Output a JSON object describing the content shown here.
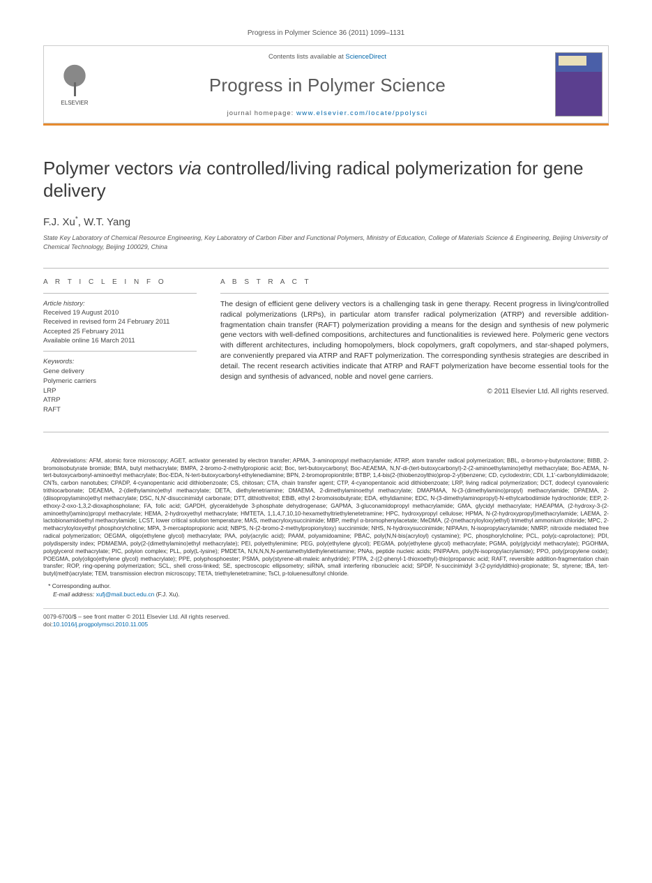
{
  "citation": "Progress in Polymer Science 36 (2011) 1099–1131",
  "masthead": {
    "contents_prefix": "Contents lists available at ",
    "contents_link": "ScienceDirect",
    "journal_name": "Progress in Polymer Science",
    "homepage_prefix": "journal homepage: ",
    "homepage_url": "www.elsevier.com/locate/ppolysci",
    "publisher": "ELSEVIER",
    "cover_label": "PROGRESS IN POLYMER SCIENCE"
  },
  "colors": {
    "accent_rule": "#e68a2e",
    "link_color": "#0066aa",
    "text_gray": "#555555",
    "title_gray": "#3a3a3a",
    "cover_top": "#4a5fa8",
    "cover_bottom": "#5b3f8f"
  },
  "article": {
    "title_pre": "Polymer vectors ",
    "title_ital": "via",
    "title_post": " controlled/living radical polymerization for gene delivery",
    "authors": "F.J. Xu",
    "author2": ", W.T. Yang",
    "corr_mark": "*",
    "affiliation": "State Key Laboratory of Chemical Resource Engineering, Key Laboratory of Carbon Fiber and Functional Polymers, Ministry of Education, College of Materials Science & Engineering, Beijing University of Chemical Technology, Beijing 100029, China"
  },
  "info": {
    "heading": "A R T I C L E   I N F O",
    "history_label": "Article history:",
    "received": "Received 19 August 2010",
    "revised": "Received in revised form 24 February 2011",
    "accepted": "Accepted 25 February 2011",
    "online": "Available online 16 March 2011",
    "keywords_label": "Keywords:",
    "keywords": [
      "Gene delivery",
      "Polymeric carriers",
      "LRP",
      "ATRP",
      "RAFT"
    ]
  },
  "abstract": {
    "heading": "A B S T R A C T",
    "text": "The design of efficient gene delivery vectors is a challenging task in gene therapy. Recent progress in living/controlled radical polymerizations (LRPs), in particular atom transfer radical polymerization (ATRP) and reversible addition-fragmentation chain transfer (RAFT) polymerization providing a means for the design and synthesis of new polymeric gene vectors with well-defined compositions, architectures and functionalities is reviewed here. Polymeric gene vectors with different architectures, including homopolymers, block copolymers, graft copolymers, and star-shaped polymers, are conveniently prepared via ATRP and RAFT polymerization. The corresponding synthesis strategies are described in detail. The recent research activities indicate that ATRP and RAFT polymerization have become essential tools for the design and synthesis of advanced, noble and novel gene carriers.",
    "copyright": "© 2011 Elsevier Ltd. All rights reserved."
  },
  "abbreviations": {
    "lead": "Abbreviations:",
    "text": " AFM, atomic force microscopy; AGET, activator generated by electron transfer; APMA, 3-aminopropyl methacrylamide; ATRP, atom transfer radical polymerization; BBL, α-bromo-γ-butyrolactone; BIBB, 2-bromoisobutyrate bromide; BMA, butyl methacrylate; BMPA, 2-bromo-2-methylpropionic acid; Boc, tert-butoxycarbonyl; Boc-AEAEMA, N,N′-di-(tert-butoxycarbonyl)-2-(2-aminoethylamino)ethyl methacrylate; Boc-AEMA, N-tert-butoxycarbonyl-aminoethyl methacrylate; Boc-EDA, N-tert-butoxycarbonyl-ethylenediamine; BPN, 2-bromopropionitrile; BTBP, 1,4-bis(2-(thiobenzoylthio)prop-2-yl)benzene; CD, cyclodextrin; CDI, 1,1′-carbonyldiimidazole; CNTs, carbon nanotubes; CPADP, 4-cyanopentanic acid dithiobenzoate; CS, chitosan; CTA, chain transfer agent; CTP, 4-cyanopentanoic acid dithiobenzoate; LRP, living radical polymerization; DCT, dodecyl cyanovaleric trithiocarbonate; DEAEMA, 2-(diethylamino)ethyl methacrylate; DETA, diethylenetriamine; DMAEMA, 2-dimethylaminoethyl methacrylate; DMAPMAA, N-(3-(dimethylamino)propyl) methacrylamide; DPAEMA, 2-(diisopropylamino)ethyl methacrylate; DSC, N,N′-disuccinimidyl carbonate; DTT, dithiothreitol; EBiB, ethyl 2-bromoisobutyrate; EDA, ethyldiamine; EDC, N-(3-dimethylaminopropyl)-N-ethylcarbodiimide hydrochloride; EEP, 2-ethoxy-2-oxo-1,3,2-dioxaphospholane; FA, folic acid; GAPDH, glyceraldehyde 3-phosphate dehydrogenase; GAPMA, 3-gluconamidopropyl methacrylamide; GMA, glycidyl methacrylate; HAEAPMA, (2-hydroxy-3-(2-aminoethyl)amino)propyl methacrylate; HEMA, 2-hydroxyethyl methacrylate; HMTETA, 1,1,4,7,10,10-hexamethyltriethylenetetramine; HPC, hydroxypropyl cellulose; HPMA, N-(2-hydroxypropyl)methacrylamide; LAEMA, 2-lactobionamidoethyl methacrylamide; LCST, lower critical solution temperature; MAS, methacryloxysuccinimide; MBP, methyl α-bromophenylacetate; MeDMA, (2-(methacryloyloxy)ethyl) trimethyl ammonium chloride; MPC, 2-methacryloyloxyethyl phosphorylcholine; MPA, 3-mercaptopropionic acid; NBPS, N-(2-bromo-2-methylpropionyloxy) succinimide; NHS, N-hydroxysuccinimide; NIPAAm, N-isopropylacrylamide; NMRP, nitroxide mediated free radical polymerization; OEGMA, oligo(ethylene glycol) methacrylate; PAA, poly(acrylic acid); PAAM, polyamidoamine; PBAC, poly(N,N-bis(acryloyl) cystamine); PC, phosphorylcholine; PCL, poly(ε-caprolactone); PDI, polydispersity index; PDMAEMA, poly(2-(dimethylamino)ethyl methacrylate); PEI, polyethylenimine; PEG, poly(ethylene glycol); PEGMA, poly(ethylene glycol) methacrylate; PGMA, poly(glycidyl methacrylate); PGOHMA, polyglycerol methacrylate; PIC, polyion complex; PLL, poly(L-lysine); PMDETA, N,N,N,N,N-pentamethyldiethylenetriamine; PNAs, peptide nucleic acids; PNIPAAm, poly(N-isopropylacrylamide); PPO, poly(propylene oxide); POEGMA, poly(oligo(ethylene glycol) methacrylate); PPE, polyphosphoester; PSMA, poly(styrene-alt-maleic anhydride); PTPA, 2-((2-phenyl-1-thioxoethyl)-thio)propanoic acid; RAFT, reversible addition-fragmentation chain transfer; ROP, ring-opening polymerization; SCL, shell cross-linked; SE, spectroscopic ellipsometry; siRNA, small interfering ribonucleic acid; SPDP, N-succinimidyl 3-(2-pyridyldithio)-propionate; St, styrene; tBA, tert-butyl(meth)acrylate; TEM, transmission electron microscopy; TETA, triethylenetetramine; TsCl, p-toluenesulfonyl chloride."
  },
  "footer": {
    "corr_label": "* Corresponding author.",
    "email_label": "E-mail address: ",
    "email": "xufj@mail.buct.edu.cn",
    "email_suffix": " (F.J. Xu).",
    "front_matter": "0079-6700/$ – see front matter © 2011 Elsevier Ltd. All rights reserved.",
    "doi_prefix": "doi:",
    "doi": "10.1016/j.progpolymsci.2010.11.005"
  }
}
